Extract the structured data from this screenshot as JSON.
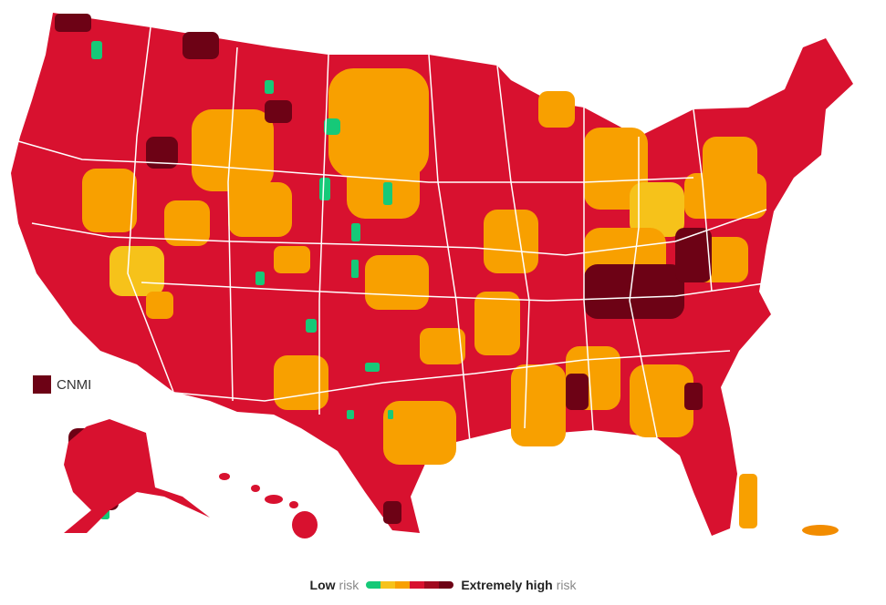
{
  "colors": {
    "low": "#16c978",
    "moderate_low": "#f6c21a",
    "moderate": "#f8a000",
    "substantial": "#f28c00",
    "high": "#d8112f",
    "extremely_high": "#6d0215",
    "state_border": "#ffffff"
  },
  "inset": {
    "label": "CNMI",
    "swatch_color": "#6d0215"
  },
  "legend": {
    "low_bold": "Low",
    "low_suffix": "risk",
    "high_bold": "Extremely high",
    "high_suffix": "risk",
    "scale_colors": [
      "#16c978",
      "#f6c21a",
      "#f8a000",
      "#d8112f",
      "#a0091f",
      "#6d0215"
    ]
  }
}
